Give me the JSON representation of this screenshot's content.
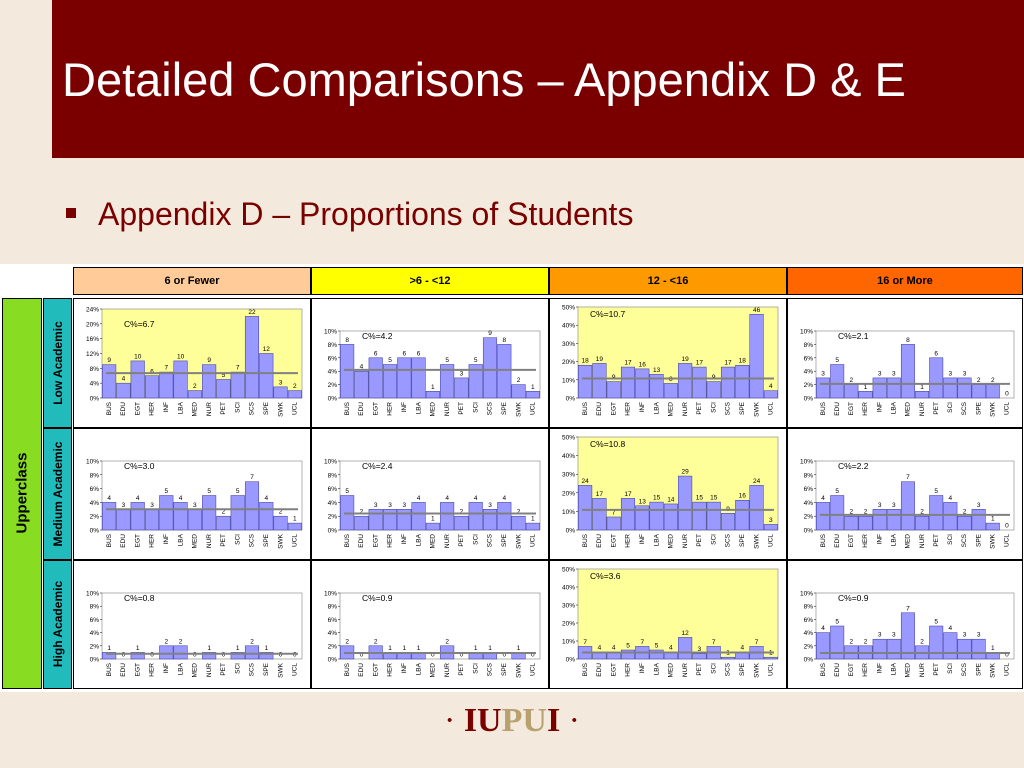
{
  "slide": {
    "title": "Detailed Comparisons – Appendix D & E",
    "bullet": "Appendix D – Proportions of Students",
    "logo_iu": "IU",
    "logo_pu": "PU",
    "logo_i": "I",
    "logo_dot": "·"
  },
  "table": {
    "columns": [
      {
        "label": "6 or Fewer",
        "color": "#ffcc99"
      },
      {
        "label": ">6 - <12",
        "color": "#ffff00"
      },
      {
        "label": "12 - <16",
        "color": "#ff9900"
      },
      {
        "label": "16 or More",
        "color": "#ff6600"
      }
    ],
    "group_label": "Upperclass",
    "rows": [
      "Low Academic",
      "Medium Academic",
      "High Academic"
    ]
  },
  "colors": {
    "bar": "#9999ff",
    "highlight_bg": "#ffff99",
    "mean_line": "#808080",
    "title_band": "#7a0000"
  },
  "chart_data": [
    {
      "type": "bar",
      "row": "Low Academic",
      "column": "6 or Fewer",
      "annotation": "C%=6.7",
      "highlight": true,
      "ylim": [
        0,
        24
      ],
      "yticks": [
        0,
        4,
        8,
        12,
        16,
        20,
        24
      ],
      "yfmt": "%",
      "categories": [
        "BUS",
        "EDU",
        "EGT",
        "HER",
        "INF",
        "LBA",
        "MED",
        "NUR",
        "PET",
        "SCI",
        "SCS",
        "SPE",
        "SWK",
        "UCL"
      ],
      "values": [
        9,
        4,
        10,
        6,
        7,
        10,
        2,
        9,
        5,
        7,
        22,
        12,
        3,
        2
      ],
      "mean": 6.7
    },
    {
      "type": "bar",
      "row": "Low Academic",
      "column": ">6 - <12",
      "annotation": "C%=4.2",
      "highlight": false,
      "ylim": [
        0,
        10
      ],
      "yticks": [
        0,
        2,
        4,
        6,
        8,
        10
      ],
      "yfmt": "%",
      "categories": [
        "BUS",
        "EDU",
        "EGT",
        "HER",
        "INF",
        "LBA",
        "MED",
        "NUR",
        "PET",
        "SCI",
        "SCS",
        "SPE",
        "SWK",
        "UCL"
      ],
      "values": [
        8,
        4,
        6,
        5,
        6,
        6,
        1,
        5,
        3,
        5,
        9,
        8,
        2,
        1
      ],
      "mean": 4.2
    },
    {
      "type": "bar",
      "row": "Low Academic",
      "column": "12 - <16",
      "annotation": "C%=10.7",
      "highlight": true,
      "ylim": [
        0,
        50
      ],
      "yticks": [
        0,
        10,
        20,
        30,
        40,
        50
      ],
      "yfmt": "%",
      "categories": [
        "BUS",
        "EDU",
        "EGT",
        "HER",
        "INF",
        "LBA",
        "MED",
        "NUR",
        "PET",
        "SCI",
        "SCS",
        "SPE",
        "SWK",
        "UCL"
      ],
      "values": [
        18,
        19,
        9,
        17,
        16,
        13,
        8,
        19,
        17,
        9,
        17,
        18,
        46,
        4
      ],
      "mean": 10.7
    },
    {
      "type": "bar",
      "row": "Low Academic",
      "column": "16 or More",
      "annotation": "C%=2.1",
      "highlight": false,
      "ylim": [
        0,
        10
      ],
      "yticks": [
        0,
        2,
        4,
        6,
        8,
        10
      ],
      "yfmt": "%",
      "categories": [
        "BUS",
        "EDU",
        "EGT",
        "HER",
        "INF",
        "LBA",
        "MED",
        "NUR",
        "PET",
        "SCI",
        "SCS",
        "SPE",
        "SWK",
        "UCL"
      ],
      "values": [
        3,
        5,
        2,
        1,
        3,
        3,
        8,
        1,
        6,
        3,
        3,
        2,
        2,
        0
      ],
      "mean": 2.1
    },
    {
      "type": "bar",
      "row": "Medium Academic",
      "column": "6 or Fewer",
      "annotation": "C%=3.0",
      "highlight": false,
      "ylim": [
        0,
        10
      ],
      "yticks": [
        0,
        2,
        4,
        6,
        8,
        10
      ],
      "yfmt": "%",
      "categories": [
        "BUS",
        "EDU",
        "EGT",
        "HER",
        "INF",
        "LBA",
        "MED",
        "NUR",
        "PET",
        "SCI",
        "SCS",
        "SPE",
        "SWK",
        "UCL"
      ],
      "values": [
        4,
        3,
        4,
        3,
        5,
        4,
        3,
        5,
        2,
        5,
        7,
        4,
        2,
        1
      ],
      "mean": 3.0
    },
    {
      "type": "bar",
      "row": "Medium Academic",
      "column": ">6 - <12",
      "annotation": "C%=2.4",
      "highlight": false,
      "ylim": [
        0,
        10
      ],
      "yticks": [
        0,
        2,
        4,
        6,
        8,
        10
      ],
      "yfmt": "%",
      "categories": [
        "BUS",
        "EDU",
        "EGT",
        "HER",
        "INF",
        "LBA",
        "MED",
        "NUR",
        "PET",
        "SCI",
        "SCS",
        "SPE",
        "SWK",
        "UCL"
      ],
      "values": [
        5,
        2,
        3,
        3,
        3,
        4,
        1,
        4,
        2,
        4,
        3,
        4,
        2,
        1
      ],
      "mean": 2.4
    },
    {
      "type": "bar",
      "row": "Medium Academic",
      "column": "12 - <16",
      "annotation": "C%=10.8",
      "highlight": true,
      "ylim": [
        0,
        50
      ],
      "yticks": [
        0,
        10,
        20,
        30,
        40,
        50
      ],
      "yfmt": "%",
      "categories": [
        "BUS",
        "EDU",
        "EGT",
        "HER",
        "INF",
        "LBA",
        "MED",
        "NUR",
        "PET",
        "SCI",
        "SCS",
        "SPE",
        "SWK",
        "UCL"
      ],
      "values": [
        24,
        17,
        7,
        17,
        13,
        15,
        14,
        29,
        15,
        15,
        9,
        16,
        24,
        3
      ],
      "mean": 10.8
    },
    {
      "type": "bar",
      "row": "Medium Academic",
      "column": "16 or More",
      "annotation": "C%=2.2",
      "highlight": false,
      "ylim": [
        0,
        10
      ],
      "yticks": [
        0,
        2,
        4,
        6,
        8,
        10
      ],
      "yfmt": "%",
      "categories": [
        "BUS",
        "EDU",
        "EGT",
        "HER",
        "INF",
        "LBA",
        "MED",
        "NUR",
        "PET",
        "SCI",
        "SCS",
        "SPE",
        "SWK",
        "UCL"
      ],
      "values": [
        4,
        5,
        2,
        2,
        3,
        3,
        7,
        2,
        5,
        4,
        2,
        3,
        1,
        0
      ],
      "mean": 2.2
    },
    {
      "type": "bar",
      "row": "High Academic",
      "column": "6 or Fewer",
      "annotation": "C%=0.8",
      "highlight": false,
      "ylim": [
        0,
        10
      ],
      "yticks": [
        0,
        2,
        4,
        6,
        8,
        10
      ],
      "yfmt": "%",
      "categories": [
        "BUS",
        "EDU",
        "EGT",
        "HER",
        "INF",
        "LBA",
        "MED",
        "NUR",
        "PET",
        "SCI",
        "SCS",
        "SPE",
        "SWK",
        "UCL"
      ],
      "values": [
        1,
        0,
        1,
        0,
        2,
        2,
        0,
        1,
        0,
        1,
        2,
        1,
        0,
        0
      ],
      "mean": 0.8
    },
    {
      "type": "bar",
      "row": "High Academic",
      "column": ">6 - <12",
      "annotation": "C%=0.9",
      "highlight": false,
      "ylim": [
        0,
        10
      ],
      "yticks": [
        0,
        2,
        4,
        6,
        8,
        10
      ],
      "yfmt": "%",
      "categories": [
        "BUS",
        "EDU",
        "EGT",
        "HER",
        "INF",
        "LBA",
        "MED",
        "NUR",
        "PET",
        "SCI",
        "SCS",
        "SPE",
        "SWK",
        "UCL"
      ],
      "values": [
        2,
        0,
        2,
        1,
        1,
        1,
        0,
        2,
        0,
        1,
        1,
        0,
        1,
        0
      ],
      "mean": 0.9
    },
    {
      "type": "bar",
      "row": "High Academic",
      "column": "12 - <16",
      "annotation": "C%=3.6",
      "highlight": true,
      "ylim": [
        0,
        50
      ],
      "yticks": [
        0,
        10,
        20,
        30,
        40,
        50
      ],
      "yfmt": "%",
      "categories": [
        "BUS",
        "EDU",
        "EGT",
        "HER",
        "INF",
        "LBA",
        "MED",
        "NUR",
        "PET",
        "SCI",
        "SCS",
        "SPE",
        "SWK",
        "UCL"
      ],
      "values": [
        7,
        4,
        4,
        5,
        7,
        5,
        4,
        12,
        3,
        7,
        1,
        4,
        7,
        1
      ],
      "mean": 3.6
    },
    {
      "type": "bar",
      "row": "High Academic",
      "column": "16 or More",
      "annotation": "C%=0.9",
      "highlight": false,
      "ylim": [
        0,
        10
      ],
      "yticks": [
        0,
        2,
        4,
        6,
        8,
        10
      ],
      "yfmt": "%",
      "categories": [
        "BUS",
        "EDU",
        "EGT",
        "HER",
        "INF",
        "LBA",
        "MED",
        "NUR",
        "PET",
        "SCI",
        "SCS",
        "SPE",
        "SWK",
        "UCL"
      ],
      "values": [
        4,
        5,
        2,
        2,
        3,
        3,
        7,
        2,
        5,
        4,
        3,
        3,
        1,
        0
      ],
      "mean": 0.9
    }
  ]
}
